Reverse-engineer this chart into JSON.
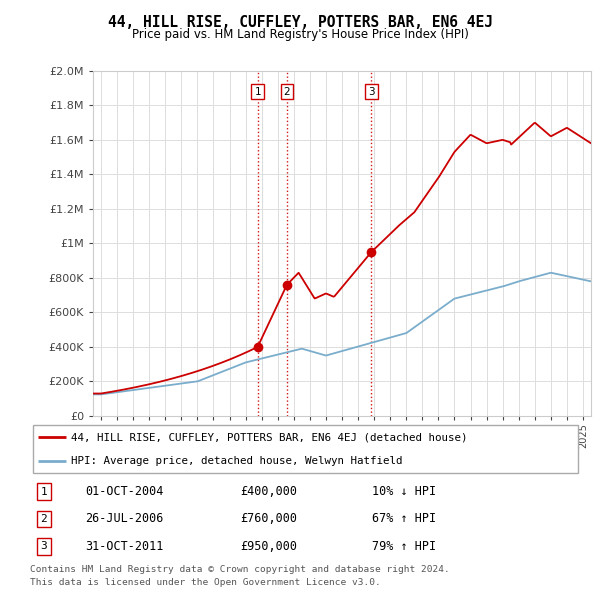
{
  "title": "44, HILL RISE, CUFFLEY, POTTERS BAR, EN6 4EJ",
  "subtitle": "Price paid vs. HM Land Registry's House Price Index (HPI)",
  "legend_line1": "44, HILL RISE, CUFFLEY, POTTERS BAR, EN6 4EJ (detached house)",
  "legend_line2": "HPI: Average price, detached house, Welwyn Hatfield",
  "transactions": [
    {
      "num": 1,
      "date": "01-OCT-2004",
      "price": 400000,
      "pct": "10%",
      "dir": "↓"
    },
    {
      "num": 2,
      "date": "26-JUL-2006",
      "price": 760000,
      "pct": "67%",
      "dir": "↑"
    },
    {
      "num": 3,
      "date": "31-OCT-2011",
      "price": 950000,
      "pct": "79%",
      "dir": "↑"
    }
  ],
  "transaction_dates_decimal": [
    2004.75,
    2006.57,
    2011.83
  ],
  "transaction_prices": [
    400000,
    760000,
    950000
  ],
  "footnote1": "Contains HM Land Registry data © Crown copyright and database right 2024.",
  "footnote2": "This data is licensed under the Open Government Licence v3.0.",
  "red_color": "#cc0000",
  "blue_color": "#7aadcc",
  "background_color": "#ffffff",
  "grid_color": "#dddddd",
  "ylim": [
    0,
    2000000
  ],
  "yticks": [
    0,
    200000,
    400000,
    600000,
    800000,
    1000000,
    1200000,
    1400000,
    1600000,
    1800000,
    2000000
  ],
  "xlim_start": 1994.5,
  "xlim_end": 2025.5
}
